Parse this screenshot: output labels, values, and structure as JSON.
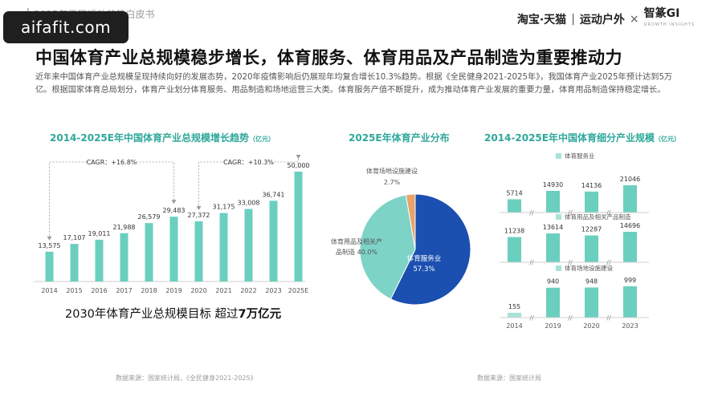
{
  "watermark": "aifafit.com",
  "report_title": "2025年天猫运动趋势白皮书",
  "brands": {
    "taobao": "淘宝·天猫",
    "category": "运动户外",
    "times": "×",
    "zhi": "智篆GI",
    "zhi_sub": "GROWTH INSIGHTS"
  },
  "title": "中国体育产业总规模稳步增长，体育服务、体育用品及产品制造为重要推动力",
  "intro": "近年来中国体育产业总规模呈现持续向好的发展态势，2020年疫情影响后仍展现年均复合增长10.3%趋势。根据《全民健身2021-2025年》，我国体育产业2025年预计达到5万亿。根据国家体育总局划分，体育产业划分体育服务、用品制造和场地运营三大类。体育服务产值不断提升，成为推动体育产业发展的重要力量，体育用品制造保持稳定增长。",
  "colors": {
    "teal": "#2fa89b",
    "bar": "#6bcfbf",
    "bar_light": "#a8e3d8",
    "navy": "#1b4fb0",
    "pie_teal": "#7dd3c6",
    "pie_orange": "#e9a36a"
  },
  "left": {
    "title": "2014-2025E年中国体育产业总规模增长趋势",
    "unit": "（亿元）",
    "goal_prefix": "2030年体育产业总规模目标 超过",
    "goal_value": "7万亿元",
    "footnote": "数据来源：国家统计局、《全民健身2021-2025》"
  },
  "middle": {
    "title": "2025E年体育产业分布",
    "footnote": "数据来源：国家统计局"
  },
  "right": {
    "title": "2014-2025E年中国体育细分产业规模",
    "unit": "（亿元）"
  },
  "chart_data": [
    {
      "type": "bar",
      "title": "2014-2025E年中国体育产业总规模增长趋势",
      "unit": "亿元",
      "categories": [
        "2014",
        "2015",
        "2016",
        "2017",
        "2018",
        "2019",
        "2020",
        "2021",
        "2022",
        "2023",
        "2025E"
      ],
      "values": [
        13575,
        17107,
        19011,
        21988,
        26579,
        29483,
        27372,
        31175,
        33008,
        36741,
        50000
      ],
      "value_labels": [
        "13,575",
        "17,107",
        "19,011",
        "21,988",
        "26,579",
        "29,483",
        "27,372",
        "31,175",
        "33,008",
        "36,741",
        "50,000"
      ],
      "ylim": [
        0,
        50000
      ],
      "annotations": [
        {
          "text": "CAGR：+16.8%",
          "from": "2014",
          "to": "2019"
        },
        {
          "text": "CAGR：+10.3%",
          "from": "2020",
          "to": "2025E"
        }
      ],
      "grid": false,
      "legend": "none"
    },
    {
      "type": "pie",
      "title": "2025E年体育产业分布",
      "slices": [
        {
          "name": "体育服务业",
          "value": 57.3,
          "label": "57.3%",
          "color": "#1b4fb0"
        },
        {
          "name": "体育用品及相关产品制造",
          "value": 40.0,
          "label": "40.0%",
          "color": "#7dd3c6"
        },
        {
          "name": "体育场地设施建设",
          "value": 2.7,
          "label": "2.7%",
          "color": "#e9a36a"
        }
      ]
    },
    {
      "type": "bar",
      "title": "2014-2025E年中国体育细分产业规模",
      "unit": "亿元",
      "categories": [
        "2014",
        "2019",
        "2020",
        "2023"
      ],
      "series": [
        {
          "name": "体育服务业",
          "values": [
            5714,
            14930,
            14136,
            21046
          ],
          "value_labels": [
            "5714",
            "14930",
            "14136",
            "21046"
          ]
        },
        {
          "name": "体育用品及相关产品制造",
          "values": [
            11238,
            13614,
            12287,
            14696
          ],
          "value_labels": [
            "11238",
            "13614",
            "12287",
            "14696"
          ]
        },
        {
          "name": "体育场地设施建设",
          "values": [
            155,
            940,
            948,
            999
          ],
          "value_labels": [
            "155",
            "940",
            "948",
            "999"
          ]
        }
      ],
      "axis_break": true,
      "legend": "none"
    }
  ]
}
